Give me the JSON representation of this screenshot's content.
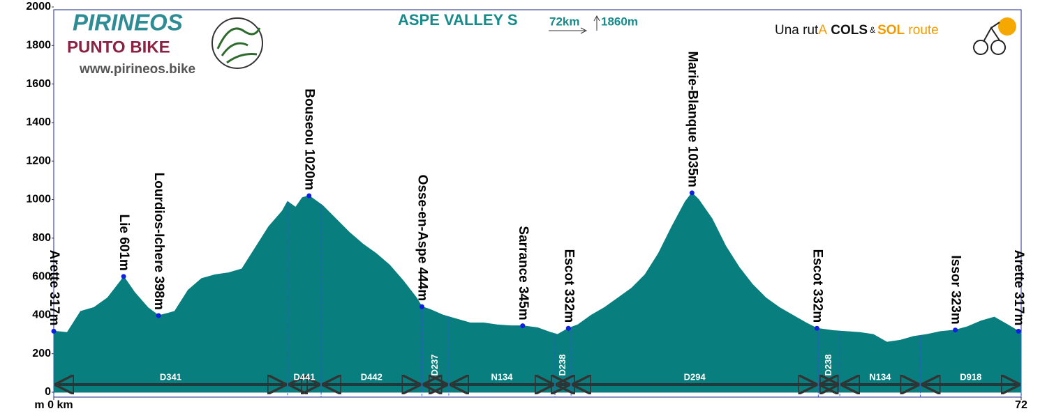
{
  "chart_data": {
    "type": "area",
    "title": "ASPE VALLEY S",
    "distance": "72km",
    "ascent": "1860m",
    "logo": {
      "name": "PIRINEOS",
      "subname": "PUNTO BIKE",
      "url": "www.pirineos.bike"
    },
    "brand": [
      "Una rut",
      "A",
      " COLS",
      "&",
      "SOL",
      " route"
    ],
    "color": "#087f7e",
    "xlim": [
      0,
      72
    ],
    "xticks": [
      {
        "value": 0,
        "label": "m 0 km"
      },
      72
    ],
    "ylim": [
      0,
      2000
    ],
    "yticks": [
      0,
      200,
      400,
      600,
      800,
      1000,
      1200,
      1400,
      1600,
      1800,
      2000
    ],
    "profile": {
      "x": [
        0,
        1,
        2,
        3,
        4,
        5,
        5.2,
        6,
        7,
        7.8,
        8.5,
        9,
        10,
        11,
        12,
        13,
        14,
        15,
        16,
        17,
        17.4,
        18,
        18.5,
        19,
        20,
        21,
        22,
        23,
        24,
        25,
        26,
        27,
        27.4,
        28,
        29,
        30,
        31,
        32,
        33,
        34,
        34.9,
        36,
        37,
        37.5,
        38.3,
        39,
        40,
        41,
        42,
        43,
        44,
        45,
        46,
        47,
        47.5,
        48,
        49,
        50,
        51,
        52,
        53,
        54,
        55,
        56,
        56.8,
        58,
        59,
        60,
        61,
        62,
        63,
        64,
        65,
        66,
        67.1,
        68,
        69,
        70,
        71,
        71.8,
        72
      ],
      "values": [
        317,
        310,
        420,
        440,
        490,
        580,
        601,
        520,
        440,
        398,
        410,
        420,
        530,
        590,
        610,
        620,
        640,
        750,
        860,
        940,
        990,
        960,
        1010,
        1020,
        970,
        900,
        830,
        770,
        720,
        660,
        580,
        490,
        444,
        430,
        400,
        380,
        360,
        360,
        350,
        345,
        345,
        335,
        310,
        300,
        332,
        350,
        400,
        440,
        490,
        540,
        610,
        720,
        860,
        990,
        1035,
        1000,
        900,
        760,
        650,
        560,
        490,
        440,
        400,
        360,
        332,
        320,
        315,
        310,
        300,
        260,
        270,
        290,
        300,
        315,
        323,
        340,
        370,
        390,
        350,
        317,
        310
      ]
    },
    "points": {
      "x": [
        0,
        5.2,
        7.8,
        19,
        27.4,
        34.9,
        38.3,
        47.5,
        56.8,
        67.1,
        71.8
      ],
      "values": [
        317,
        601,
        398,
        1020,
        444,
        345,
        332,
        1035,
        332,
        323,
        317
      ],
      "value_labels": [
        "Arette 317m",
        "Lie 601m",
        "Lourdios-Ichere 398m",
        "Bouseou 1020m",
        "Osse-en-Aspe 444m",
        "Sarrance 345m",
        "Escot 332m",
        "Marie-Blanque 1035m",
        "Escot 332m",
        "Issor 323m",
        "Arette 317m"
      ]
    },
    "segments": {
      "bounds": [
        0,
        17.4,
        19.9,
        27.4,
        29.4,
        37.3,
        38.5,
        56.9,
        58.5,
        64.5,
        72
      ],
      "labels": [
        "D341",
        "D441",
        "D442",
        "D237",
        "N134",
        "D238",
        "D294",
        "D238",
        "N134",
        "D918"
      ]
    }
  }
}
